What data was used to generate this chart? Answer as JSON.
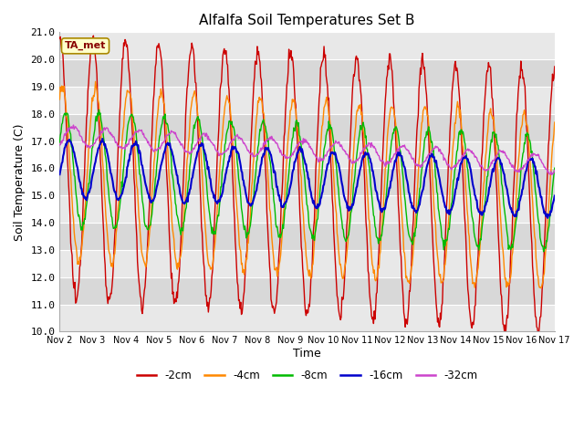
{
  "title": "Alfalfa Soil Temperatures Set B",
  "ylabel": "Soil Temperature (C)",
  "xlabel": "Time",
  "ylim": [
    10.0,
    21.0
  ],
  "yticks": [
    10.0,
    11.0,
    12.0,
    13.0,
    14.0,
    15.0,
    16.0,
    17.0,
    18.0,
    19.0,
    20.0,
    21.0
  ],
  "xtick_labels": [
    "Nov 2",
    "Nov 3",
    "Nov 4",
    "Nov 5",
    "Nov 6",
    "Nov 7",
    "Nov 8",
    "Nov 9",
    "Nov 10",
    "Nov 11",
    "Nov 12",
    "Nov 13",
    "Nov 14",
    "Nov 15",
    "Nov 16",
    "Nov 17"
  ],
  "legend_entries": [
    "-2cm",
    "-4cm",
    "-8cm",
    "-16cm",
    "-32cm"
  ],
  "line_colors": [
    "#cc0000",
    "#ff8800",
    "#00bb00",
    "#0000cc",
    "#cc44cc"
  ],
  "line_widths": [
    1.0,
    1.0,
    1.0,
    1.5,
    1.0
  ],
  "fig_bg_color": "#ffffff",
  "plot_bg_color": "#d8d8d8",
  "alt_band_color": "#e8e8e8",
  "grid_color": "#ffffff",
  "title_fontsize": 11,
  "annotation_label": "TA_met",
  "annotation_box_color": "#ffffcc",
  "annotation_text_color": "#880000",
  "n_points": 720,
  "days": 15
}
